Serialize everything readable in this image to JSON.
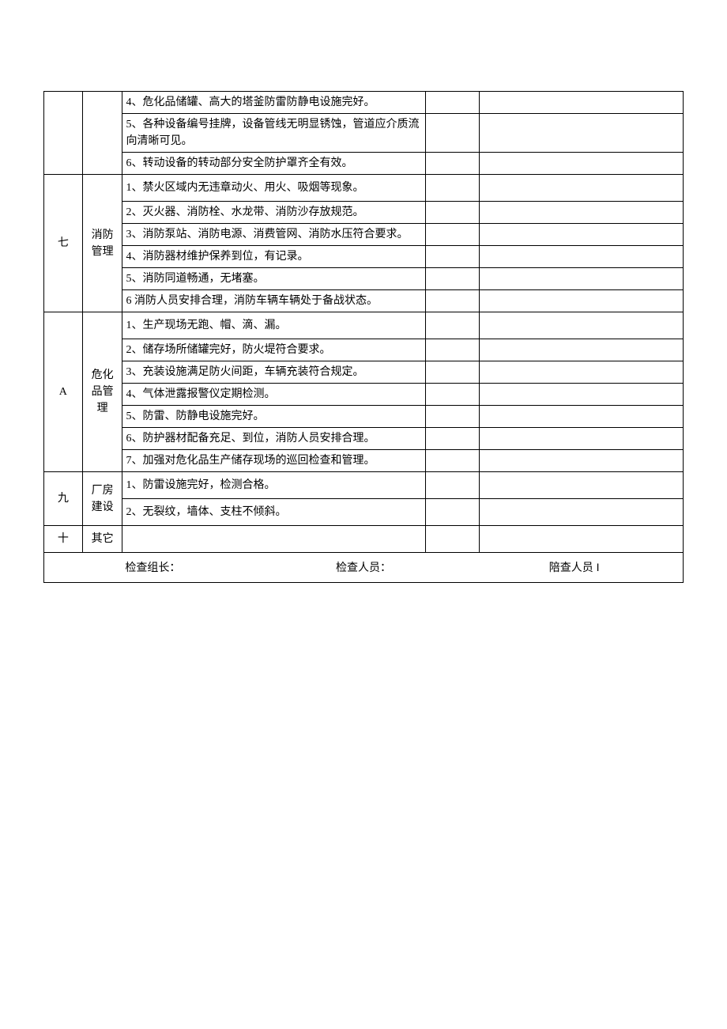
{
  "sections": {
    "sec6": {
      "no": "",
      "cat": "",
      "items": [
        "4、危化品储罐、高大的塔釜防雷防静电设施完好。",
        "5、各种设备编号挂牌，设备管线无明显锈蚀，管道应介质流向清晰可见。",
        "6、转动设备的转动部分安全防护罩齐全有效。"
      ]
    },
    "sec7": {
      "no": "七",
      "cat": "消防管理",
      "items": [
        "1、禁火区域内无违章动火、用火、吸烟等现象。",
        "2、灭火器、消防栓、水龙带、消防沙存放规范。",
        "3、消防泵站、消防电源、消费管网、消防水压符合要求。",
        "4、消防器材维护保养到位，有记录。",
        "5、消防同道畅通，无堵塞。",
        "6 消防人员安排合理，消防车辆车辆处于备战状态。"
      ]
    },
    "sec8": {
      "no": "A",
      "cat": "危化品管理",
      "items": [
        "1、生产现场无跑、帽、滴、漏。",
        "2、储存场所储罐完好，防火堤符合要求。",
        "3、充装设施满足防火间距，车辆充装符合规定。",
        "4、气体泄露报警仪定期检测。",
        "5、防雷、防静电设施完好。",
        "6、防护器材配备充足、到位，消防人员安排合理。",
        "7、加强对危化品生产储存现场的巡回检查和管理。"
      ]
    },
    "sec9": {
      "no": "九",
      "cat": "厂房建设",
      "items": [
        "1、防雷设施完好，检测合格。",
        "2、无裂纹，墙体、支柱不倾斜。"
      ]
    },
    "sec10": {
      "no": "十",
      "cat": "其它",
      "items": [
        ""
      ]
    }
  },
  "footer": {
    "leader": "检查组长：",
    "inspector": "检查人员：",
    "accompany": "陪查人员 I"
  }
}
